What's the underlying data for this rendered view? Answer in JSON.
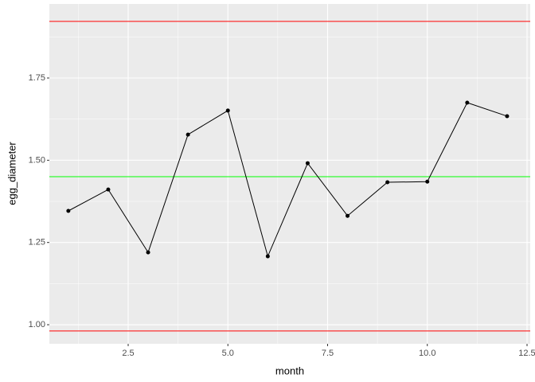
{
  "chart_data": {
    "type": "line",
    "x_label": "month",
    "y_label": "egg_diameter",
    "x": [
      1,
      2,
      3,
      4,
      5,
      6,
      7,
      8,
      9,
      10,
      11,
      12
    ],
    "series": [
      {
        "color": "#000000",
        "values": [
          1.346,
          1.411,
          1.22,
          1.578,
          1.651,
          1.208,
          1.491,
          1.331,
          1.433,
          1.435,
          1.675,
          1.634
        ]
      }
    ],
    "hlines": [
      {
        "value": 1.922,
        "color": "#FF0000"
      },
      {
        "value": 0.981,
        "color": "#FF0000"
      },
      {
        "value": 1.45,
        "color": "#00FF00"
      }
    ],
    "xlim": [
      0.524,
      12.58
    ],
    "ylim": [
      0.942,
      1.975
    ],
    "xticks": [
      2.5,
      {
        "value": 5,
        "label": "5.0"
      },
      7.5,
      {
        "value": 10,
        "label": "10.0"
      },
      12.5
    ],
    "yticks": [
      {
        "value": 1,
        "label": "1.00"
      },
      {
        "value": 1.25,
        "label": "1.25"
      },
      {
        "value": 1.5,
        "label": "1.50"
      },
      {
        "value": 1.75,
        "label": "1.75"
      }
    ],
    "grid": true
  }
}
